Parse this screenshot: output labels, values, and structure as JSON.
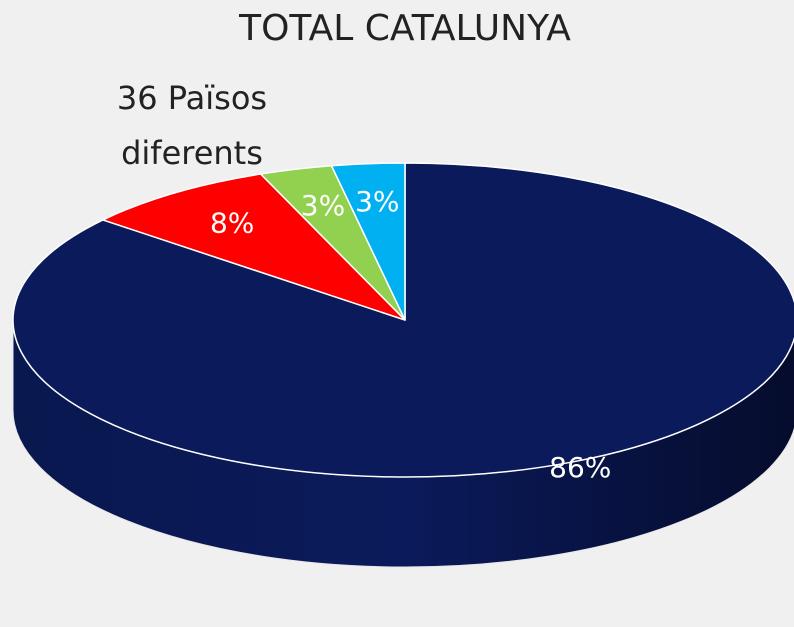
{
  "chart_data": {
    "type": "pie",
    "title": "TOTAL CATALUNYA",
    "annotation": [
      "36 Països",
      "diferents"
    ],
    "values": [
      86,
      8,
      3,
      3
    ],
    "value_labels": [
      "86%",
      "8%",
      "3%",
      "3%"
    ],
    "colors": [
      "#0b1a5a",
      "#ff0000",
      "#92d050",
      "#00b0f0"
    ]
  }
}
